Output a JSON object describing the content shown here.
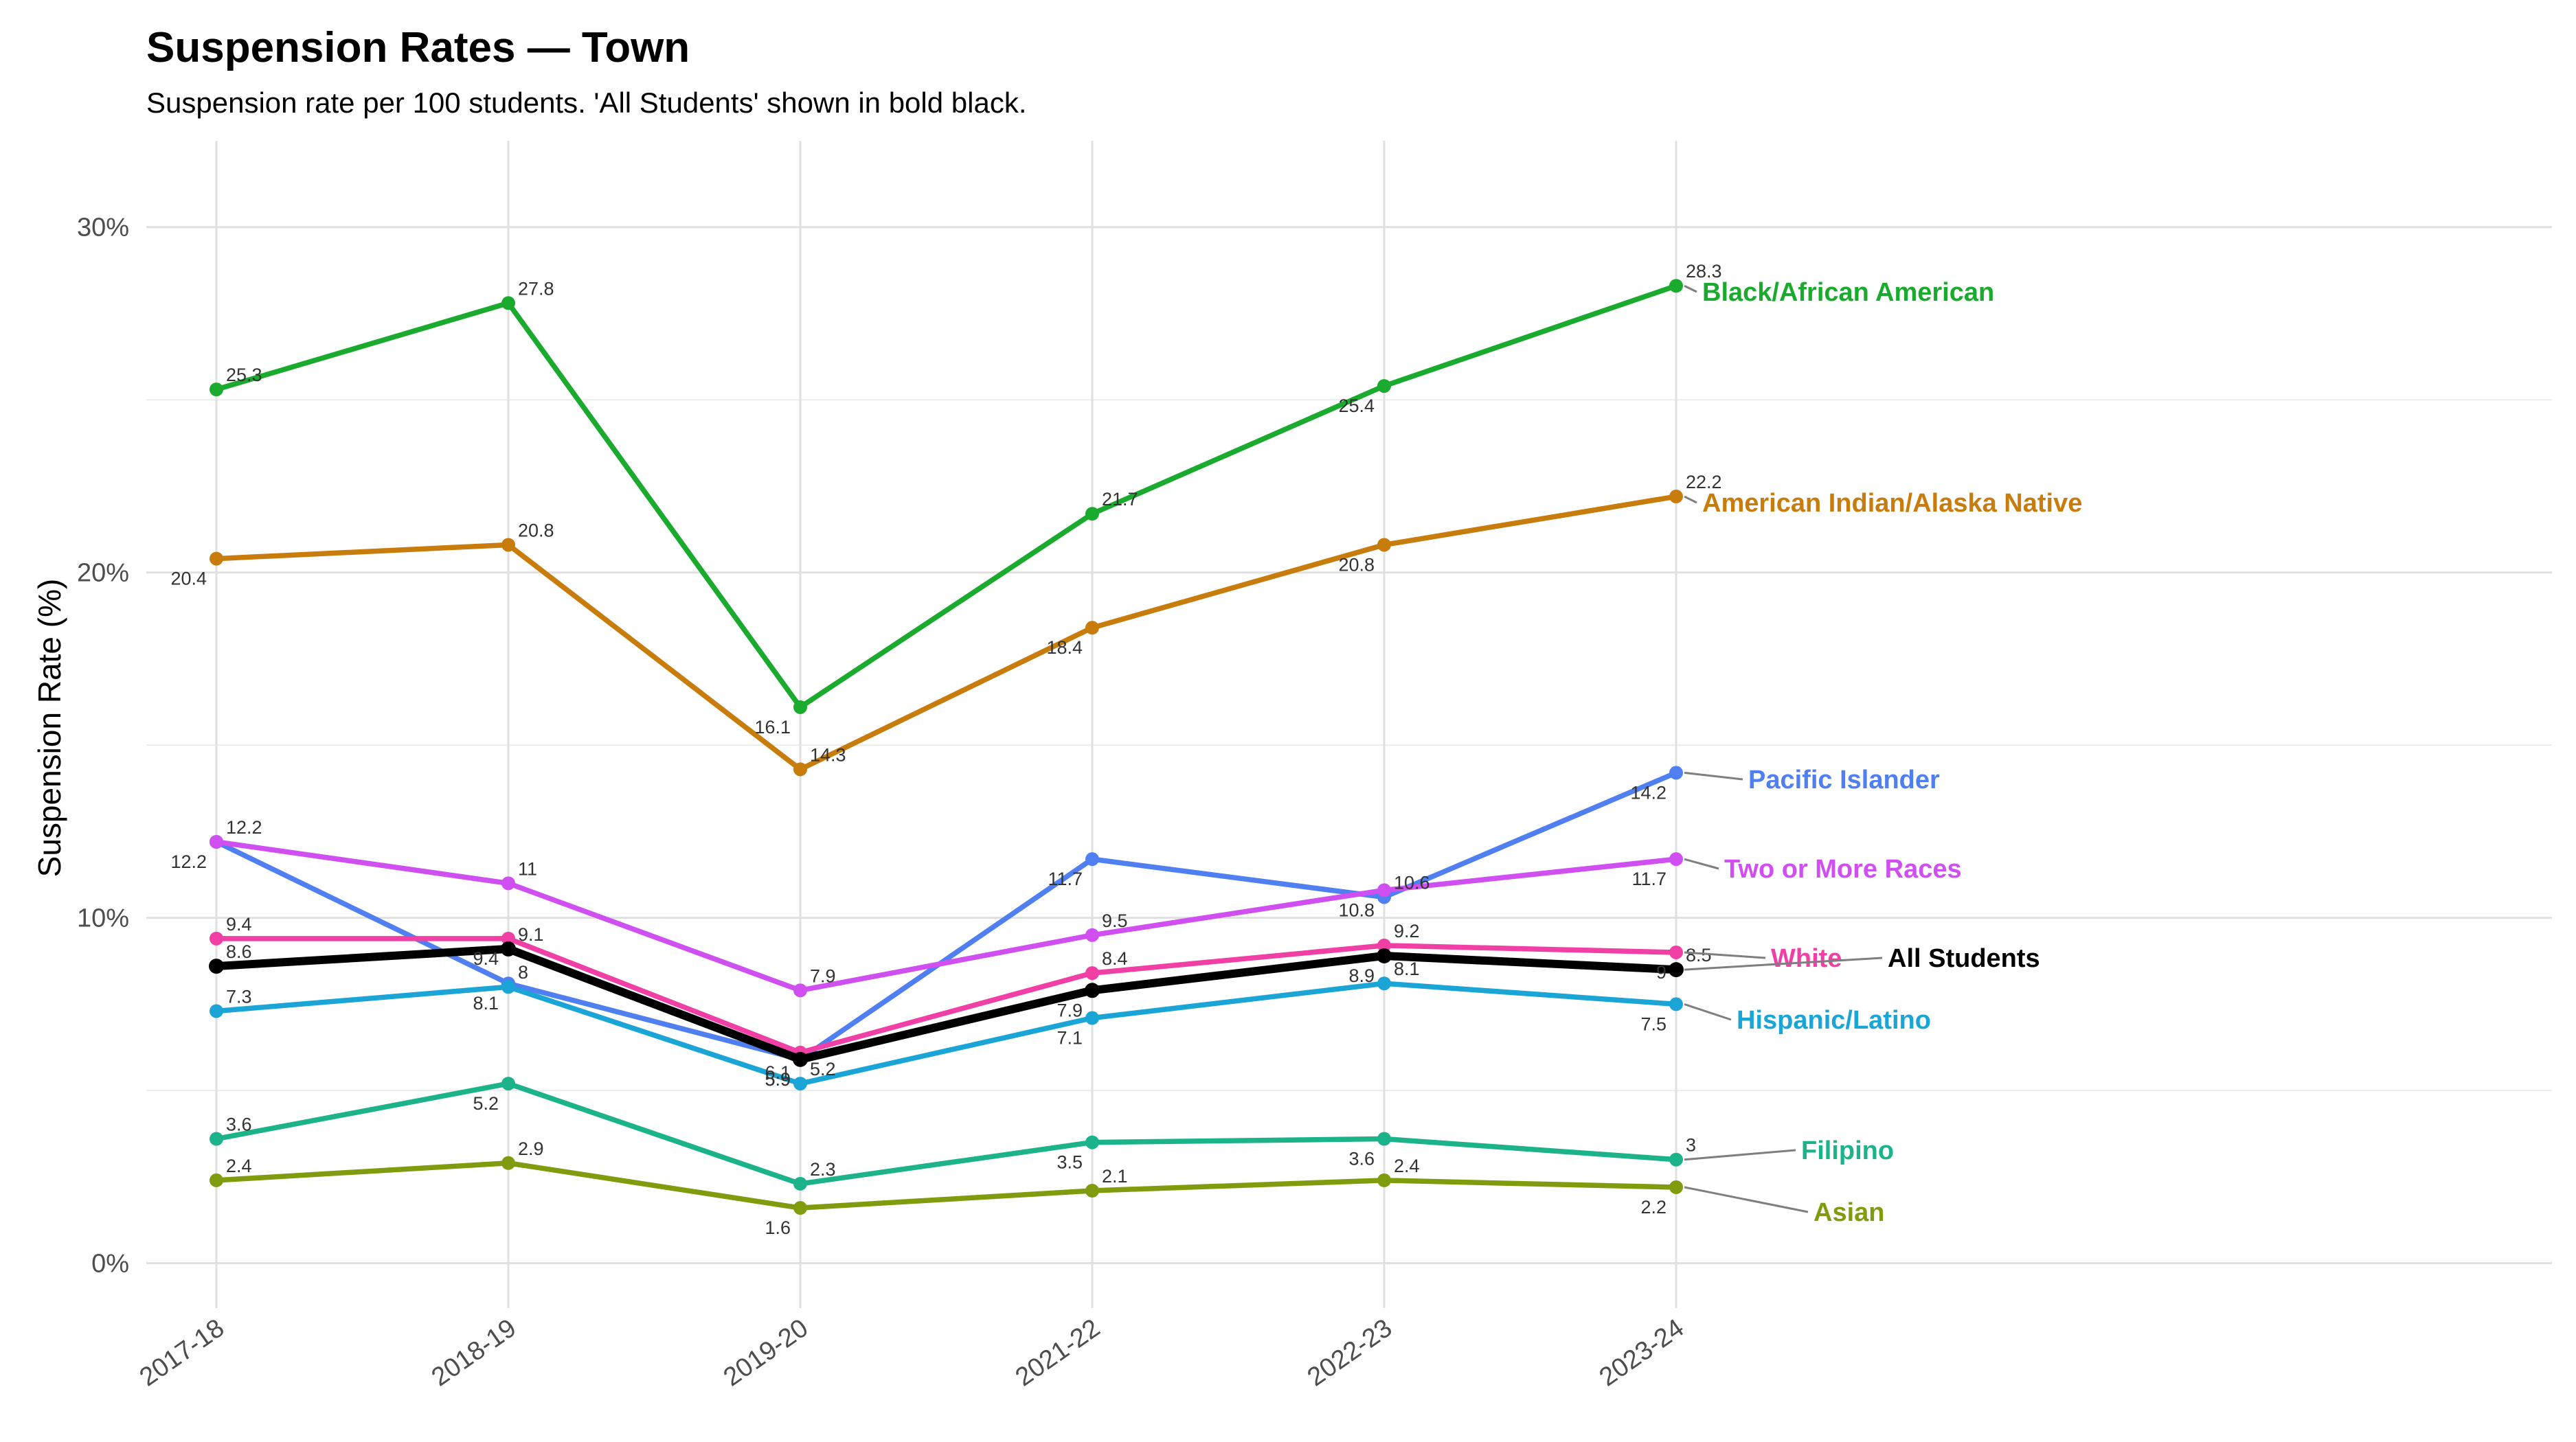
{
  "chart_data": {
    "type": "line",
    "title": "Suspension Rates — Town",
    "subtitle": "Suspension rate per 100 students. 'All Students' shown in bold black.",
    "ylabel": "Suspension Rate (%)",
    "xlabel": "",
    "categories": [
      "2017-18",
      "2018-19",
      "2019-20",
      "2021-22",
      "2022-23",
      "2023-24"
    ],
    "yticks": [
      0,
      10,
      20,
      30
    ],
    "ytick_labels": [
      "0%",
      "10%",
      "20%",
      "30%"
    ],
    "ylim": [
      -1.3,
      32.5
    ],
    "grid": true,
    "legend": "none",
    "series": [
      {
        "name": "Black/African American",
        "color": "#1aab2e",
        "values": [
          25.3,
          27.8,
          16.1,
          21.7,
          25.4,
          28.3
        ]
      },
      {
        "name": "American Indian/Alaska Native",
        "color": "#c77c0c",
        "values": [
          20.4,
          20.8,
          14.3,
          18.4,
          20.8,
          22.2
        ]
      },
      {
        "name": "Pacific Islander",
        "color": "#4f7ff0",
        "values": [
          12.2,
          8.1,
          5.9,
          11.7,
          10.6,
          14.2
        ]
      },
      {
        "name": "Two or More Races",
        "color": "#cf4ff0",
        "values": [
          12.2,
          11,
          7.9,
          9.5,
          10.8,
          11.7
        ]
      },
      {
        "name": "White",
        "color": "#f03fa5",
        "values": [
          9.4,
          9.4,
          6.1,
          8.4,
          9.2,
          9
        ]
      },
      {
        "name": "Hispanic/Latino",
        "color": "#1aa5d6",
        "values": [
          7.3,
          8,
          5.2,
          7.1,
          8.1,
          7.5
        ]
      },
      {
        "name": "Filipino",
        "color": "#1db38a",
        "values": [
          3.6,
          5.2,
          2.3,
          3.5,
          3.6,
          3
        ]
      },
      {
        "name": "Asian",
        "color": "#7f9c0e",
        "values": [
          2.4,
          2.9,
          1.6,
          2.1,
          2.4,
          2.2
        ]
      },
      {
        "name": "All Students",
        "color": "#000000",
        "bold": true,
        "values": [
          8.6,
          9.1,
          5.9,
          7.9,
          8.9,
          8.5
        ]
      }
    ]
  }
}
